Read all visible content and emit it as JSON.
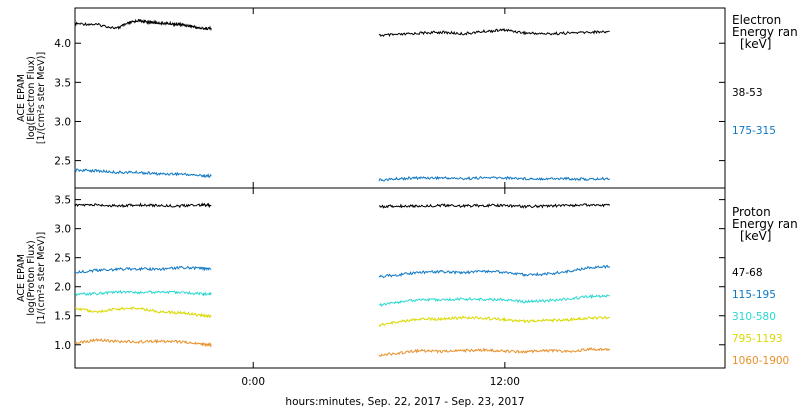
{
  "xlabel": "hours:minutes, Sep. 22, 2017 - Sep. 23, 2017",
  "chart_data": [
    {
      "type": "line",
      "ylabel_lines": [
        "ACE EPAM",
        "log(Electron Flux)",
        "[1/(cm²s ster MeV)]"
      ],
      "legend_title": [
        "Electron",
        "Energy ran",
        "[keV]"
      ],
      "xlim": [
        -8.5,
        22.5
      ],
      "ylim": [
        2.15,
        4.45
      ],
      "yticks": [
        2.5,
        3.0,
        3.5,
        4.0
      ],
      "ytick_labels": [
        "2.5",
        "3.0",
        "3.5",
        "4.0"
      ],
      "xticks": [
        0,
        12
      ],
      "xtick_labels": [
        "0:00",
        "12:00"
      ],
      "grid": false,
      "series": [
        {
          "name": "38-53",
          "color": "#000000",
          "segments": [
            {
              "x": [
                -8.5,
                -7.5,
                -6.5,
                -6.0,
                -5.5,
                -5.0,
                -4.5,
                -4.0,
                -3.5,
                -3.0,
                -2.5,
                -2.0
              ],
              "y": [
                4.25,
                4.24,
                4.19,
                4.25,
                4.29,
                4.27,
                4.26,
                4.25,
                4.24,
                4.22,
                4.19,
                4.19
              ]
            },
            {
              "x": [
                6.0,
                7.0,
                8.0,
                9.0,
                10.0,
                11.0,
                12.0,
                13.0,
                14.0,
                15.0,
                16.0,
                17.0
              ],
              "y": [
                4.1,
                4.11,
                4.13,
                4.14,
                4.12,
                4.15,
                4.17,
                4.13,
                4.12,
                4.13,
                4.14,
                4.15
              ]
            }
          ]
        },
        {
          "name": "175-315",
          "color": "#0f78c4",
          "segments": [
            {
              "x": [
                -8.5,
                -7.5,
                -6.5,
                -5.5,
                -4.5,
                -3.5,
                -2.5,
                -2.0
              ],
              "y": [
                2.38,
                2.37,
                2.35,
                2.35,
                2.33,
                2.33,
                2.31,
                2.3
              ]
            },
            {
              "x": [
                6.0,
                7.0,
                8.0,
                9.0,
                10.0,
                11.0,
                12.0,
                13.0,
                14.0,
                15.0,
                16.0,
                17.0
              ],
              "y": [
                2.25,
                2.27,
                2.28,
                2.28,
                2.27,
                2.28,
                2.28,
                2.27,
                2.27,
                2.27,
                2.26,
                2.27
              ]
            }
          ]
        }
      ]
    },
    {
      "type": "line",
      "ylabel_lines": [
        "ACE EPAM",
        "log(Proton Flux)",
        "[1/(cm²s ster MeV)]"
      ],
      "legend_title": [
        "Proton",
        "Energy ran",
        "[keV]"
      ],
      "xlim": [
        -8.5,
        22.5
      ],
      "ylim": [
        0.6,
        3.7
      ],
      "yticks": [
        1.0,
        1.5,
        2.0,
        2.5,
        3.0,
        3.5
      ],
      "ytick_labels": [
        "1.0",
        "1.5",
        "2.0",
        "2.5",
        "3.0",
        "3.5"
      ],
      "xticks": [
        0,
        12
      ],
      "xtick_labels": [
        "0:00",
        "12:00"
      ],
      "grid": false,
      "series": [
        {
          "name": "47-68",
          "color": "#000000",
          "segments": [
            {
              "x": [
                -8.5,
                -7.5,
                -6.5,
                -5.5,
                -4.5,
                -3.5,
                -2.5,
                -2.0
              ],
              "y": [
                3.4,
                3.41,
                3.39,
                3.41,
                3.4,
                3.39,
                3.41,
                3.4
              ]
            },
            {
              "x": [
                6.0,
                7.0,
                8.0,
                9.0,
                10.0,
                11.0,
                12.0,
                13.0,
                14.0,
                15.0,
                16.0,
                17.0
              ],
              "y": [
                3.38,
                3.39,
                3.39,
                3.4,
                3.39,
                3.4,
                3.4,
                3.38,
                3.39,
                3.4,
                3.41,
                3.4
              ]
            }
          ]
        },
        {
          "name": "115-195",
          "color": "#0f78c4",
          "segments": [
            {
              "x": [
                -8.5,
                -7.5,
                -6.5,
                -5.5,
                -4.5,
                -3.5,
                -2.5,
                -2.0
              ],
              "y": [
                2.25,
                2.28,
                2.3,
                2.31,
                2.3,
                2.33,
                2.32,
                2.3
              ]
            },
            {
              "x": [
                6.0,
                7.0,
                8.0,
                9.0,
                10.0,
                11.0,
                12.0,
                13.0,
                14.0,
                15.0,
                16.0,
                17.0
              ],
              "y": [
                2.17,
                2.21,
                2.25,
                2.26,
                2.24,
                2.27,
                2.25,
                2.2,
                2.22,
                2.26,
                2.33,
                2.35
              ]
            }
          ]
        },
        {
          "name": "310-580",
          "color": "#2ad8d0",
          "segments": [
            {
              "x": [
                -8.5,
                -7.5,
                -6.5,
                -5.5,
                -4.5,
                -3.5,
                -2.5,
                -2.0
              ],
              "y": [
                1.87,
                1.88,
                1.91,
                1.9,
                1.91,
                1.9,
                1.88,
                1.87
              ]
            },
            {
              "x": [
                6.0,
                7.0,
                8.0,
                9.0,
                10.0,
                11.0,
                12.0,
                13.0,
                14.0,
                15.0,
                16.0,
                17.0
              ],
              "y": [
                1.68,
                1.74,
                1.78,
                1.77,
                1.79,
                1.78,
                1.78,
                1.74,
                1.76,
                1.79,
                1.83,
                1.84
              ]
            }
          ]
        },
        {
          "name": "795-1193",
          "color": "#d9d900",
          "segments": [
            {
              "x": [
                -8.5,
                -7.5,
                -6.5,
                -5.5,
                -4.5,
                -3.5,
                -2.5,
                -2.0
              ],
              "y": [
                1.63,
                1.56,
                1.62,
                1.63,
                1.57,
                1.55,
                1.51,
                1.49
              ]
            },
            {
              "x": [
                6.0,
                7.0,
                8.0,
                9.0,
                10.0,
                11.0,
                12.0,
                13.0,
                14.0,
                15.0,
                16.0,
                17.0
              ],
              "y": [
                1.34,
                1.4,
                1.45,
                1.44,
                1.47,
                1.46,
                1.43,
                1.4,
                1.42,
                1.43,
                1.46,
                1.47
              ]
            }
          ]
        },
        {
          "name": "1060-1900",
          "color": "#e8902a",
          "segments": [
            {
              "x": [
                -8.5,
                -7.5,
                -6.5,
                -5.5,
                -4.5,
                -3.5,
                -2.5,
                -2.0
              ],
              "y": [
                1.03,
                1.08,
                1.06,
                1.05,
                1.06,
                1.05,
                1.01,
                1.0
              ]
            },
            {
              "x": [
                6.0,
                7.0,
                8.0,
                9.0,
                10.0,
                11.0,
                12.0,
                13.0,
                14.0,
                15.0,
                16.0,
                17.0
              ],
              "y": [
                0.82,
                0.86,
                0.9,
                0.88,
                0.9,
                0.91,
                0.89,
                0.88,
                0.9,
                0.88,
                0.92,
                0.93
              ]
            }
          ]
        }
      ]
    }
  ]
}
